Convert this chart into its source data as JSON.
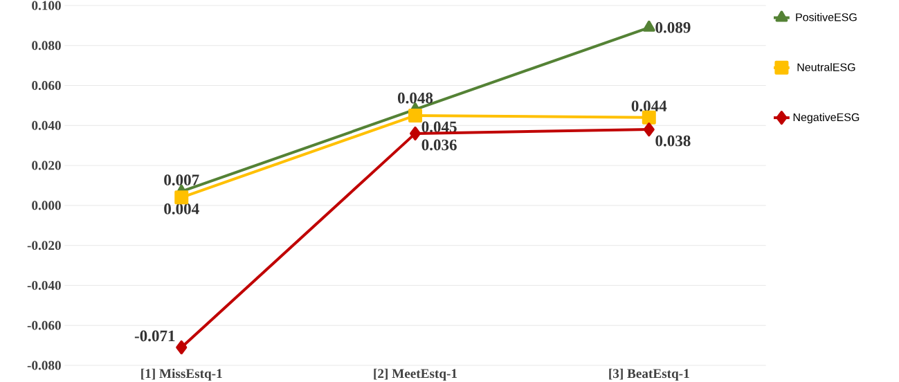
{
  "chart_data": {
    "type": "line",
    "categories": [
      "[1] MissEstq-1",
      "[2] MeetEstq-1",
      "[3] BeatEstq-1"
    ],
    "series": [
      {
        "name": "PositiveESG",
        "color": "#548235",
        "marker": "triangle",
        "values": [
          0.007,
          0.048,
          0.089
        ],
        "value_labels": [
          "0.007",
          "0.048",
          "0.089"
        ]
      },
      {
        "name": "NeutralESG",
        "color": "#ffc000",
        "marker": "square",
        "values": [
          0.004,
          0.045,
          0.044
        ],
        "value_labels": [
          "0.004",
          "0.045",
          "0.044"
        ]
      },
      {
        "name": "NegativeESG",
        "color": "#c00000",
        "marker": "diamond",
        "values": [
          -0.071,
          0.036,
          0.038
        ],
        "value_labels": [
          "-0.071",
          "0.036",
          "0.038"
        ]
      }
    ],
    "ylim": [
      -0.08,
      0.1
    ],
    "yticks": [
      {
        "value": -0.08,
        "label": "-0.080"
      },
      {
        "value": -0.06,
        "label": "-0.060"
      },
      {
        "value": -0.04,
        "label": "-0.040"
      },
      {
        "value": -0.02,
        "label": "-0.020"
      },
      {
        "value": 0,
        "label": "0.000"
      },
      {
        "value": 0.02,
        "label": "0.020"
      },
      {
        "value": 0.04,
        "label": "0.040"
      },
      {
        "value": 0.06,
        "label": "0.060"
      },
      {
        "value": 0.08,
        "label": "0.080"
      },
      {
        "value": 0.1,
        "label": "0.100"
      }
    ],
    "grid": "y",
    "legend": "right",
    "line_style": "solid"
  }
}
